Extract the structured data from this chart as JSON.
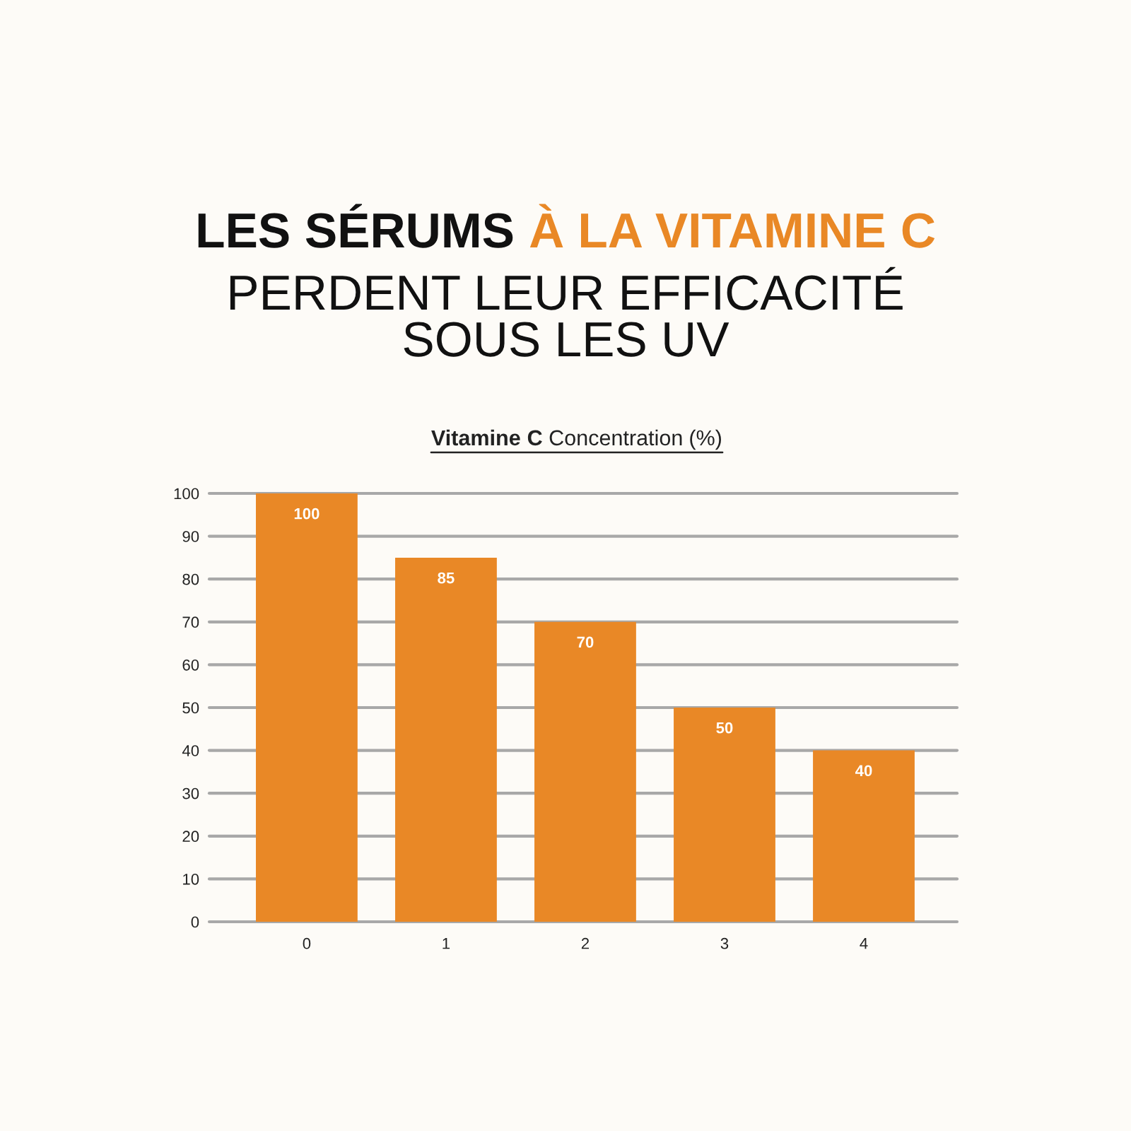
{
  "chart_data": {
    "type": "bar",
    "title": "LES SÉRUMS À LA VITAMINE C\nPERDENT LEUR EFFICACITÉ\nSOUS LES UV",
    "subtitle": "Vitamine C Concentration (%)",
    "categories": [
      "0",
      "1",
      "2",
      "3",
      "4"
    ],
    "values": [
      100,
      85,
      70,
      50,
      40
    ],
    "color": "#e98826",
    "ylim": [
      0,
      100
    ],
    "yticks": [
      0,
      10,
      20,
      30,
      40,
      50,
      60,
      70,
      80,
      90,
      100
    ],
    "grid": "y",
    "data_labels": true
  }
}
